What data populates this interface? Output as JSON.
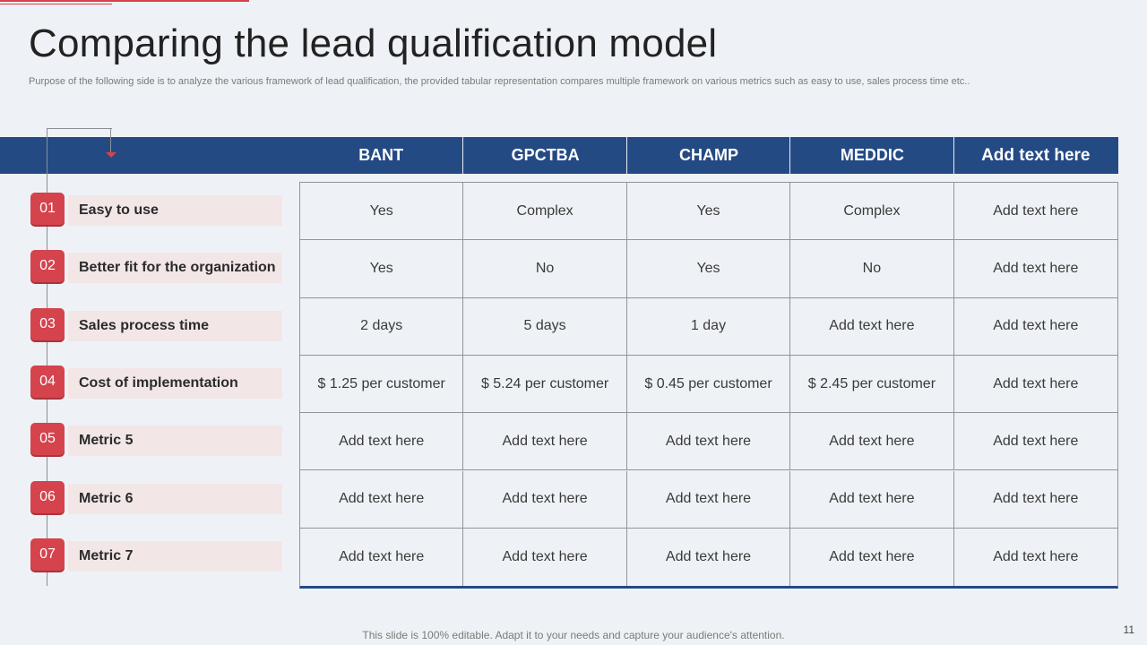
{
  "title": "Comparing the lead qualification model",
  "subtitle": "Purpose of the following side is to analyze  the various framework of lead qualification, the provided tabular representation compares multiple framework on various metrics such as easy to use, sales process time etc..",
  "columns": [
    "BANT",
    "GPCTBA",
    "CHAMP",
    "MEDDIC",
    "Add text here"
  ],
  "rows": [
    {
      "num": "01",
      "label": "Easy to use",
      "values": [
        "Yes",
        "Complex",
        "Yes",
        "Complex",
        "Add text here"
      ]
    },
    {
      "num": "02",
      "label": "Better fit for the organization",
      "values": [
        "Yes",
        "No",
        "Yes",
        "No",
        "Add text here"
      ]
    },
    {
      "num": "03",
      "label": "Sales process time",
      "values": [
        "2 days",
        "5 days",
        "1 day",
        "Add text here",
        "Add text here"
      ]
    },
    {
      "num": "04",
      "label": "Cost of implementation",
      "values": [
        "$ 1.25 per customer",
        "$ 5.24 per customer",
        "$ 0.45 per customer",
        "$ 2.45 per customer",
        "Add text here"
      ]
    },
    {
      "num": "05",
      "label": "Metric 5",
      "values": [
        "Add text here",
        "Add text here",
        "Add text here",
        "Add text here",
        "Add text here"
      ]
    },
    {
      "num": "06",
      "label": "Metric 6",
      "values": [
        "Add text here",
        "Add text here",
        "Add text here",
        "Add text here",
        "Add text here"
      ]
    },
    {
      "num": "07",
      "label": "Metric 7",
      "values": [
        "Add text here",
        "Add text here",
        "Add text here",
        "Add text here",
        "Add text here"
      ]
    }
  ],
  "footer": "This slide is 100% editable. Adapt it to your needs and capture your audience's attention.",
  "page_number": "11",
  "colors": {
    "accent_red": "#d5434d",
    "header_blue": "#244a84",
    "label_bg": "#f2e6e7"
  }
}
